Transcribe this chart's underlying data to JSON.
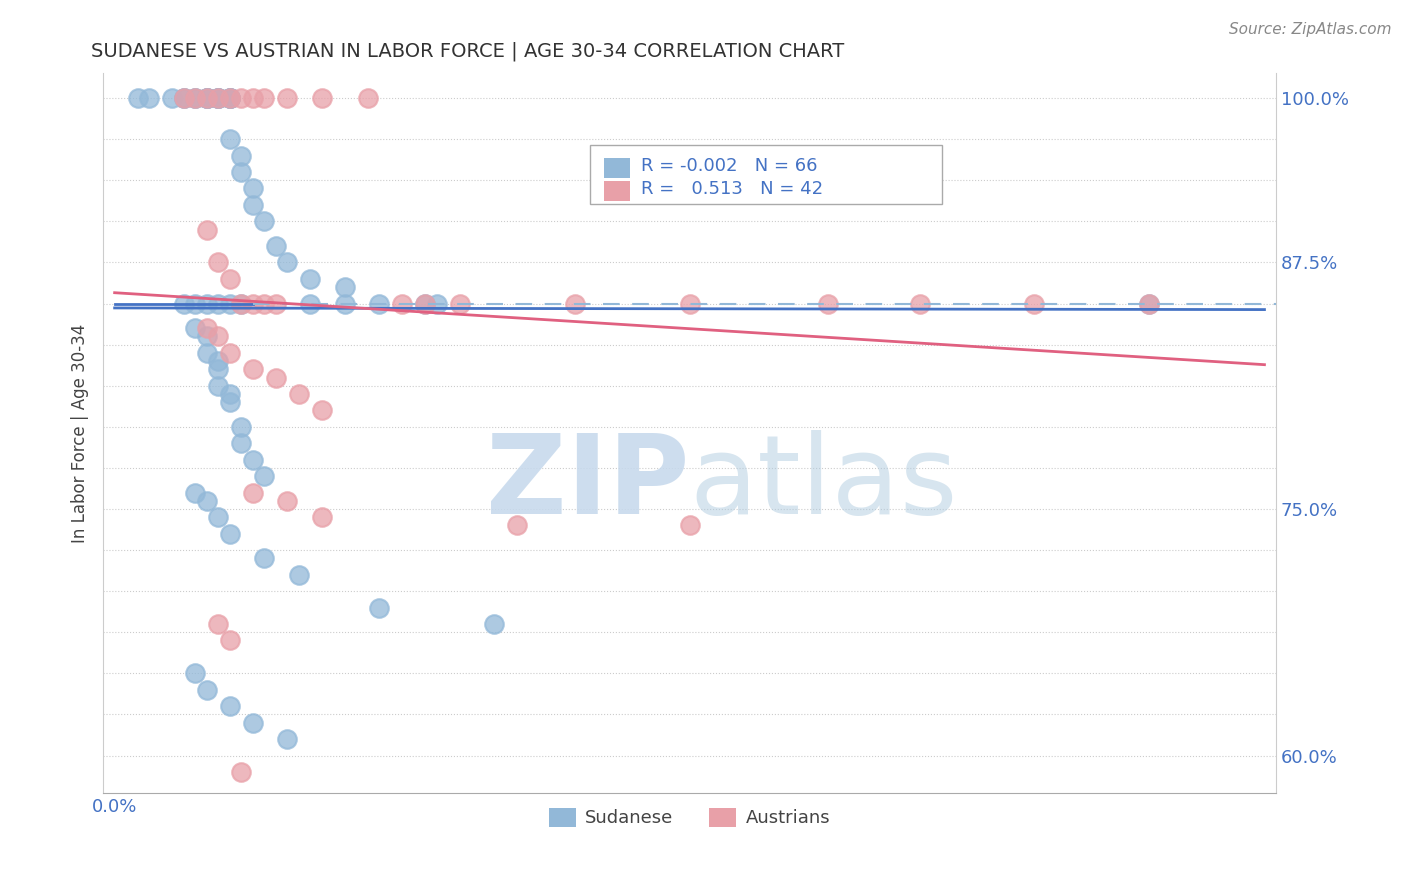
{
  "title": "SUDANESE VS AUSTRIAN IN LABOR FORCE | AGE 30-34 CORRELATION CHART",
  "source": "Source: ZipAtlas.com",
  "ylabel": "In Labor Force | Age 30-34",
  "blue_color": "#92b8d8",
  "pink_color": "#e8a0a8",
  "blue_line_color": "#4472c4",
  "pink_line_color": "#e06080",
  "dash_color": "#92b8d8",
  "watermark_zip_color": "#c5d8ec",
  "watermark_atlas_color": "#b0cce0",
  "blue_R": -0.002,
  "blue_N": 66,
  "pink_R": 0.513,
  "pink_N": 42,
  "ytick_vals": [
    0.6,
    0.625,
    0.65,
    0.675,
    0.7,
    0.725,
    0.75,
    0.775,
    0.8,
    0.825,
    0.85,
    0.875,
    0.9,
    0.925,
    0.95,
    0.975,
    1.0
  ],
  "ytick_labels": [
    "60.0%",
    "",
    "",
    "",
    "",
    "",
    "75.0%",
    "",
    "",
    "",
    "",
    "",
    "87.5%",
    "",
    "",
    "",
    "100.0%"
  ],
  "xlim": [
    -0.01,
    1.01
  ],
  "ylim": [
    0.577,
    1.015
  ],
  "blue_x": [
    0.02,
    0.03,
    0.05,
    0.06,
    0.06,
    0.07,
    0.07,
    0.08,
    0.08,
    0.08,
    0.08,
    0.09,
    0.09,
    0.09,
    0.09,
    0.1,
    0.1,
    0.1,
    0.1,
    0.1,
    0.11,
    0.11,
    0.12,
    0.12,
    0.13,
    0.14,
    0.15,
    0.17,
    0.2,
    0.23,
    0.27,
    0.28,
    0.06,
    0.07,
    0.08,
    0.09,
    0.1,
    0.11,
    0.07,
    0.08,
    0.08,
    0.09,
    0.09,
    0.09,
    0.1,
    0.1,
    0.11,
    0.11,
    0.12,
    0.13,
    0.07,
    0.08,
    0.09,
    0.1,
    0.13,
    0.16,
    0.23,
    0.33,
    0.9,
    0.07,
    0.08,
    0.1,
    0.12,
    0.15,
    0.17,
    0.2
  ],
  "blue_y": [
    1.0,
    1.0,
    1.0,
    1.0,
    1.0,
    1.0,
    1.0,
    1.0,
    1.0,
    1.0,
    1.0,
    1.0,
    1.0,
    1.0,
    1.0,
    1.0,
    1.0,
    1.0,
    1.0,
    0.975,
    0.965,
    0.955,
    0.945,
    0.935,
    0.925,
    0.91,
    0.9,
    0.89,
    0.885,
    0.875,
    0.875,
    0.875,
    0.875,
    0.875,
    0.875,
    0.875,
    0.875,
    0.875,
    0.86,
    0.855,
    0.845,
    0.84,
    0.835,
    0.825,
    0.82,
    0.815,
    0.8,
    0.79,
    0.78,
    0.77,
    0.76,
    0.755,
    0.745,
    0.735,
    0.72,
    0.71,
    0.69,
    0.68,
    0.875,
    0.65,
    0.64,
    0.63,
    0.62,
    0.61,
    0.875,
    0.875
  ],
  "pink_x": [
    0.06,
    0.07,
    0.08,
    0.09,
    0.1,
    0.11,
    0.12,
    0.13,
    0.15,
    0.18,
    0.22,
    0.08,
    0.09,
    0.1,
    0.11,
    0.12,
    0.13,
    0.14,
    0.08,
    0.09,
    0.1,
    0.12,
    0.14,
    0.16,
    0.18,
    0.27,
    0.3,
    0.4,
    0.5,
    0.62,
    0.7,
    0.8,
    0.9,
    0.12,
    0.15,
    0.18,
    0.35,
    0.5,
    0.09,
    0.1,
    0.11,
    0.25
  ],
  "pink_y": [
    1.0,
    1.0,
    1.0,
    1.0,
    1.0,
    1.0,
    1.0,
    1.0,
    1.0,
    1.0,
    1.0,
    0.92,
    0.9,
    0.89,
    0.875,
    0.875,
    0.875,
    0.875,
    0.86,
    0.855,
    0.845,
    0.835,
    0.83,
    0.82,
    0.81,
    0.875,
    0.875,
    0.875,
    0.875,
    0.875,
    0.875,
    0.875,
    0.875,
    0.76,
    0.755,
    0.745,
    0.74,
    0.74,
    0.68,
    0.67,
    0.59,
    0.875
  ]
}
